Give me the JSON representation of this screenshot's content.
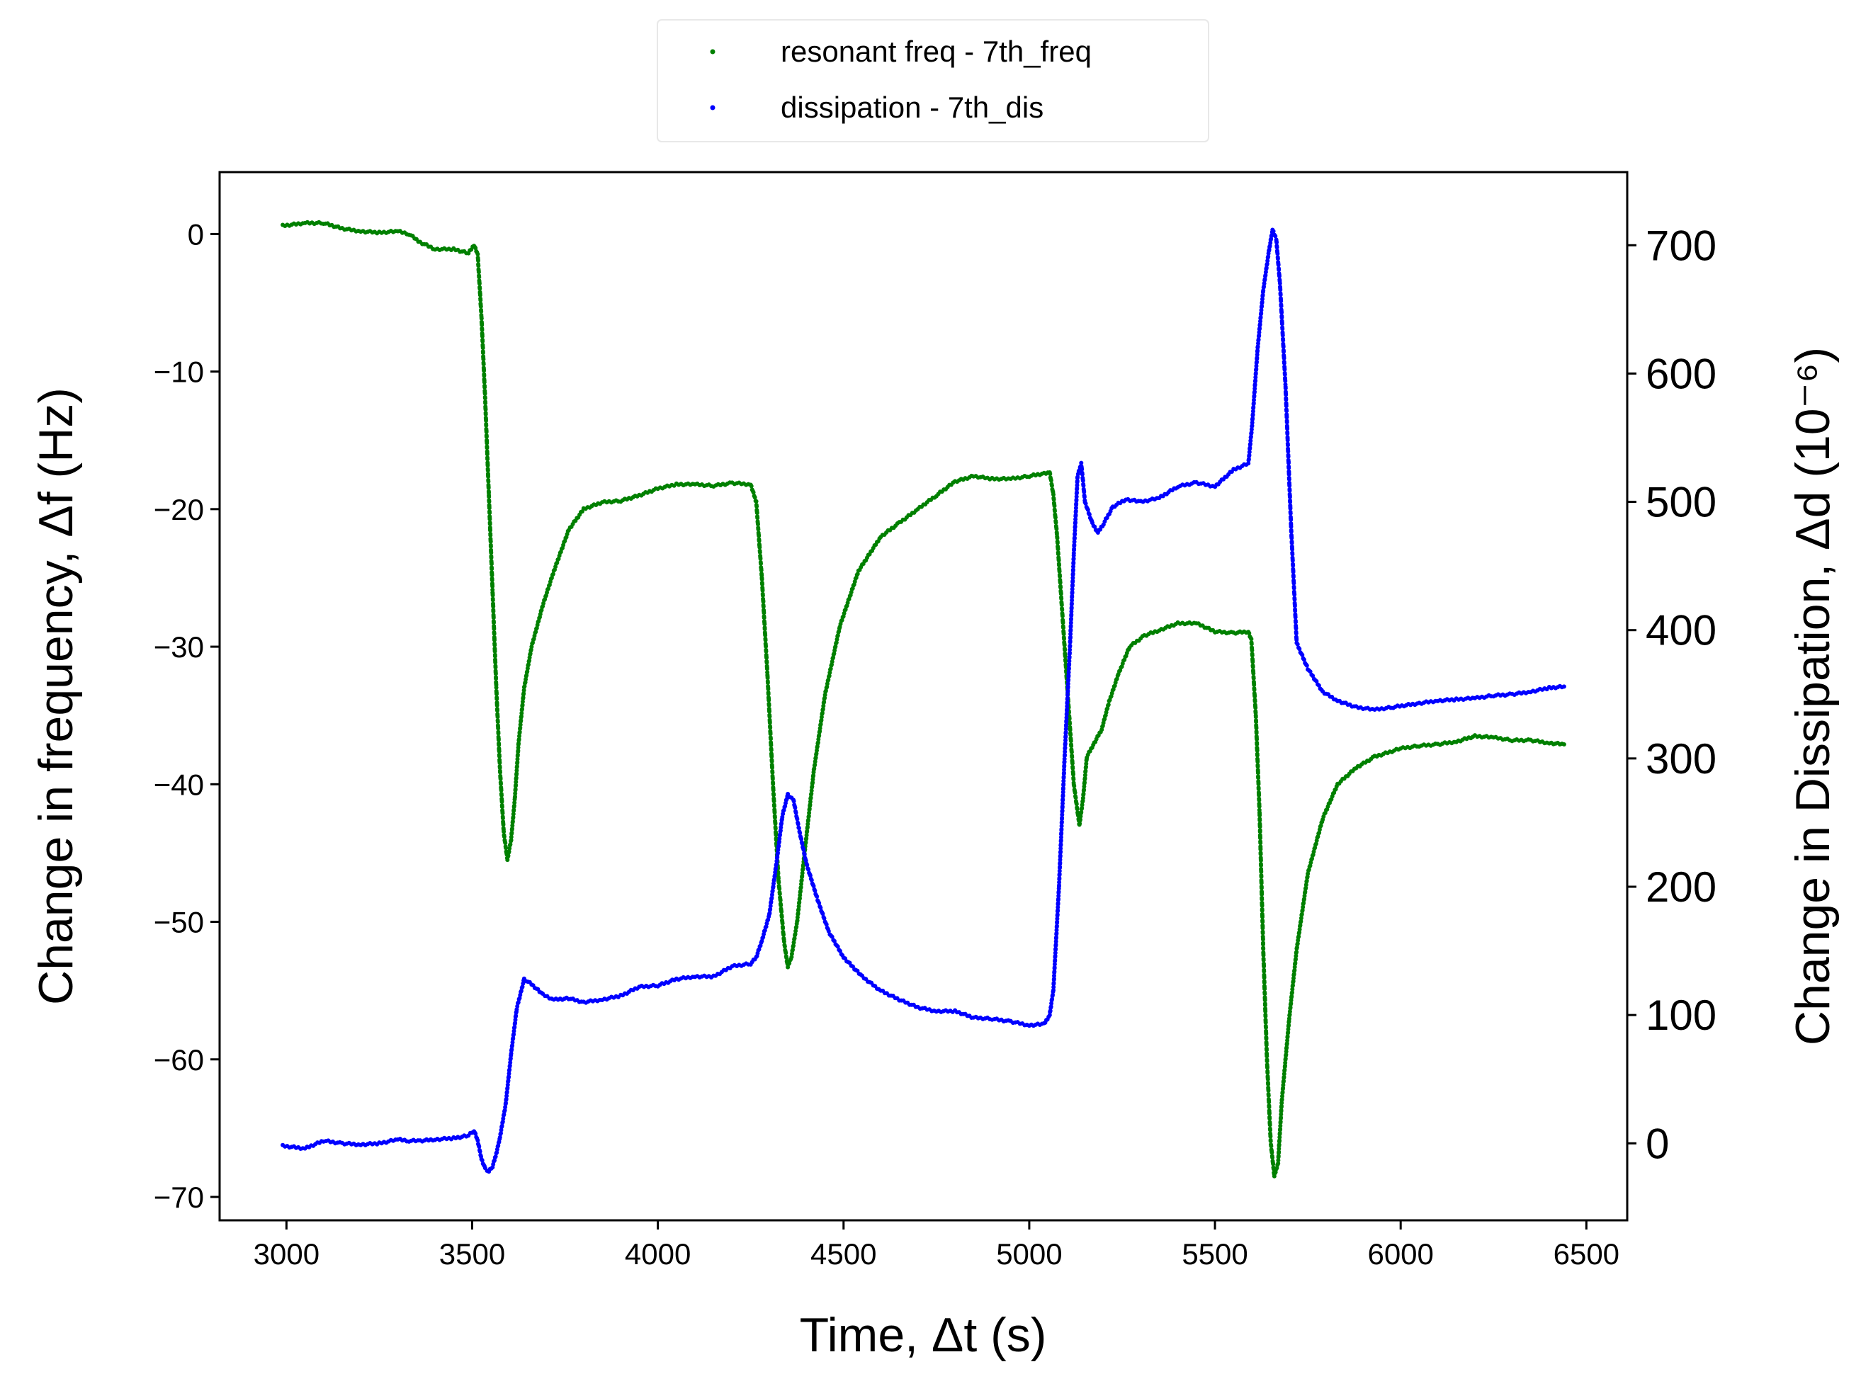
{
  "chart_data": {
    "type": "scatter",
    "title": "",
    "xlabel": "Time, Δt (s)",
    "ylabel_left": "Change in frequency, Δf (Hz)",
    "ylabel_right": "Change in Dissipation, Δd (10⁻⁶)",
    "xlim": [
      2820,
      6610
    ],
    "ylim_left": [
      -71.7,
      4.5
    ],
    "ylim_right": [
      -60,
      757
    ],
    "x_ticks": [
      3000,
      3500,
      4000,
      4500,
      5000,
      5500,
      6000,
      6500
    ],
    "y_ticks_left": [
      0,
      -10,
      -20,
      -30,
      -40,
      -50,
      -60,
      -70
    ],
    "y_ticks_right": [
      0,
      100,
      200,
      300,
      400,
      500,
      600,
      700
    ],
    "grid": false,
    "legend_position": "top-center, outside plot",
    "series": [
      {
        "name": "resonant freq - 7th_freq",
        "axis": "left",
        "color": "#008000",
        "points": [
          [
            2990,
            0.6
          ],
          [
            3050,
            0.8
          ],
          [
            3100,
            0.8
          ],
          [
            3150,
            0.4
          ],
          [
            3200,
            0.2
          ],
          [
            3250,
            0.1
          ],
          [
            3300,
            0.2
          ],
          [
            3330,
            0.0
          ],
          [
            3360,
            -0.6
          ],
          [
            3400,
            -1.1
          ],
          [
            3450,
            -1.1
          ],
          [
            3490,
            -1.4
          ],
          [
            3505,
            -0.8
          ],
          [
            3515,
            -1.5
          ],
          [
            3525,
            -6
          ],
          [
            3535,
            -12
          ],
          [
            3545,
            -19
          ],
          [
            3555,
            -26
          ],
          [
            3565,
            -33
          ],
          [
            3575,
            -39
          ],
          [
            3585,
            -43.5
          ],
          [
            3595,
            -45.5
          ],
          [
            3605,
            -44
          ],
          [
            3615,
            -41
          ],
          [
            3625,
            -37
          ],
          [
            3640,
            -33
          ],
          [
            3660,
            -30
          ],
          [
            3690,
            -27
          ],
          [
            3720,
            -24.5
          ],
          [
            3760,
            -21.5
          ],
          [
            3800,
            -20
          ],
          [
            3850,
            -19.5
          ],
          [
            3900,
            -19.4
          ],
          [
            3950,
            -19.0
          ],
          [
            4000,
            -18.5
          ],
          [
            4050,
            -18.2
          ],
          [
            4100,
            -18.2
          ],
          [
            4150,
            -18.3
          ],
          [
            4200,
            -18.1
          ],
          [
            4250,
            -18.2
          ],
          [
            4265,
            -19.5
          ],
          [
            4280,
            -25
          ],
          [
            4295,
            -32
          ],
          [
            4310,
            -40
          ],
          [
            4325,
            -47
          ],
          [
            4340,
            -51.5
          ],
          [
            4350,
            -53.3
          ],
          [
            4360,
            -52.5
          ],
          [
            4375,
            -50
          ],
          [
            4395,
            -45
          ],
          [
            4420,
            -39
          ],
          [
            4450,
            -33.5
          ],
          [
            4490,
            -28.5
          ],
          [
            4540,
            -24.5
          ],
          [
            4600,
            -22
          ],
          [
            4650,
            -21
          ],
          [
            4700,
            -20
          ],
          [
            4750,
            -19
          ],
          [
            4800,
            -18
          ],
          [
            4850,
            -17.6
          ],
          [
            4900,
            -17.8
          ],
          [
            4950,
            -17.8
          ],
          [
            5000,
            -17.6
          ],
          [
            5040,
            -17.4
          ],
          [
            5055,
            -17.3
          ],
          [
            5065,
            -19
          ],
          [
            5075,
            -22
          ],
          [
            5090,
            -28
          ],
          [
            5105,
            -34
          ],
          [
            5120,
            -40
          ],
          [
            5135,
            -43
          ],
          [
            5145,
            -41
          ],
          [
            5155,
            -38
          ],
          [
            5175,
            -37
          ],
          [
            5195,
            -36
          ],
          [
            5215,
            -34
          ],
          [
            5240,
            -32
          ],
          [
            5270,
            -30
          ],
          [
            5310,
            -29.2
          ],
          [
            5350,
            -28.8
          ],
          [
            5400,
            -28.3
          ],
          [
            5450,
            -28.3
          ],
          [
            5500,
            -28.9
          ],
          [
            5550,
            -29.0
          ],
          [
            5590,
            -28.9
          ],
          [
            5598,
            -29.5
          ],
          [
            5610,
            -35
          ],
          [
            5620,
            -42
          ],
          [
            5630,
            -52
          ],
          [
            5640,
            -60
          ],
          [
            5650,
            -66
          ],
          [
            5660,
            -68.5
          ],
          [
            5670,
            -67.5
          ],
          [
            5680,
            -63
          ],
          [
            5700,
            -57
          ],
          [
            5720,
            -52
          ],
          [
            5750,
            -46.5
          ],
          [
            5790,
            -42.5
          ],
          [
            5830,
            -40
          ],
          [
            5880,
            -38.8
          ],
          [
            5930,
            -38
          ],
          [
            6000,
            -37.4
          ],
          [
            6050,
            -37.2
          ],
          [
            6100,
            -37.1
          ],
          [
            6150,
            -36.9
          ],
          [
            6200,
            -36.5
          ],
          [
            6250,
            -36.6
          ],
          [
            6300,
            -36.8
          ],
          [
            6350,
            -36.8
          ],
          [
            6400,
            -37.0
          ],
          [
            6440,
            -37.1
          ]
        ]
      },
      {
        "name": "dissipation - 7th_dis",
        "axis": "right",
        "color": "#0000ff",
        "points": [
          [
            2990,
            -2
          ],
          [
            3050,
            -4
          ],
          [
            3100,
            2
          ],
          [
            3150,
            0
          ],
          [
            3200,
            -1
          ],
          [
            3250,
            0
          ],
          [
            3300,
            3
          ],
          [
            3330,
            2
          ],
          [
            3360,
            2
          ],
          [
            3400,
            3
          ],
          [
            3450,
            4
          ],
          [
            3490,
            6
          ],
          [
            3505,
            10
          ],
          [
            3515,
            2
          ],
          [
            3525,
            -12
          ],
          [
            3535,
            -20
          ],
          [
            3545,
            -22
          ],
          [
            3555,
            -18
          ],
          [
            3565,
            -8
          ],
          [
            3575,
            5
          ],
          [
            3590,
            30
          ],
          [
            3605,
            70
          ],
          [
            3620,
            105
          ],
          [
            3640,
            128
          ],
          [
            3660,
            124
          ],
          [
            3690,
            116
          ],
          [
            3720,
            112
          ],
          [
            3760,
            113
          ],
          [
            3800,
            110
          ],
          [
            3850,
            112
          ],
          [
            3900,
            115
          ],
          [
            3950,
            122
          ],
          [
            4000,
            123
          ],
          [
            4050,
            128
          ],
          [
            4100,
            130
          ],
          [
            4150,
            130
          ],
          [
            4200,
            138
          ],
          [
            4250,
            140
          ],
          [
            4265,
            145
          ],
          [
            4280,
            158
          ],
          [
            4300,
            178
          ],
          [
            4320,
            220
          ],
          [
            4335,
            255
          ],
          [
            4350,
            272
          ],
          [
            4365,
            268
          ],
          [
            4380,
            245
          ],
          [
            4400,
            218
          ],
          [
            4430,
            190
          ],
          [
            4460,
            165
          ],
          [
            4500,
            145
          ],
          [
            4550,
            130
          ],
          [
            4600,
            119
          ],
          [
            4650,
            112
          ],
          [
            4700,
            106
          ],
          [
            4750,
            103
          ],
          [
            4800,
            103
          ],
          [
            4850,
            98
          ],
          [
            4900,
            97
          ],
          [
            4950,
            95
          ],
          [
            5000,
            92
          ],
          [
            5040,
            93
          ],
          [
            5055,
            100
          ],
          [
            5065,
            120
          ],
          [
            5080,
            200
          ],
          [
            5095,
            300
          ],
          [
            5110,
            390
          ],
          [
            5120,
            460
          ],
          [
            5130,
            520
          ],
          [
            5140,
            530
          ],
          [
            5150,
            500
          ],
          [
            5170,
            483
          ],
          [
            5185,
            476
          ],
          [
            5200,
            483
          ],
          [
            5225,
            496
          ],
          [
            5260,
            502
          ],
          [
            5300,
            500
          ],
          [
            5350,
            503
          ],
          [
            5400,
            512
          ],
          [
            5450,
            515
          ],
          [
            5500,
            512
          ],
          [
            5550,
            525
          ],
          [
            5590,
            530
          ],
          [
            5600,
            560
          ],
          [
            5615,
            620
          ],
          [
            5630,
            665
          ],
          [
            5645,
            695
          ],
          [
            5655,
            712
          ],
          [
            5665,
            705
          ],
          [
            5675,
            670
          ],
          [
            5690,
            590
          ],
          [
            5705,
            480
          ],
          [
            5720,
            390
          ],
          [
            5750,
            370
          ],
          [
            5790,
            352
          ],
          [
            5830,
            345
          ],
          [
            5880,
            340
          ],
          [
            5930,
            338
          ],
          [
            5980,
            340
          ],
          [
            6050,
            343
          ],
          [
            6100,
            345
          ],
          [
            6150,
            346
          ],
          [
            6200,
            347
          ],
          [
            6250,
            349
          ],
          [
            6300,
            350
          ],
          [
            6350,
            352
          ],
          [
            6400,
            355
          ],
          [
            6440,
            356
          ]
        ]
      }
    ]
  }
}
